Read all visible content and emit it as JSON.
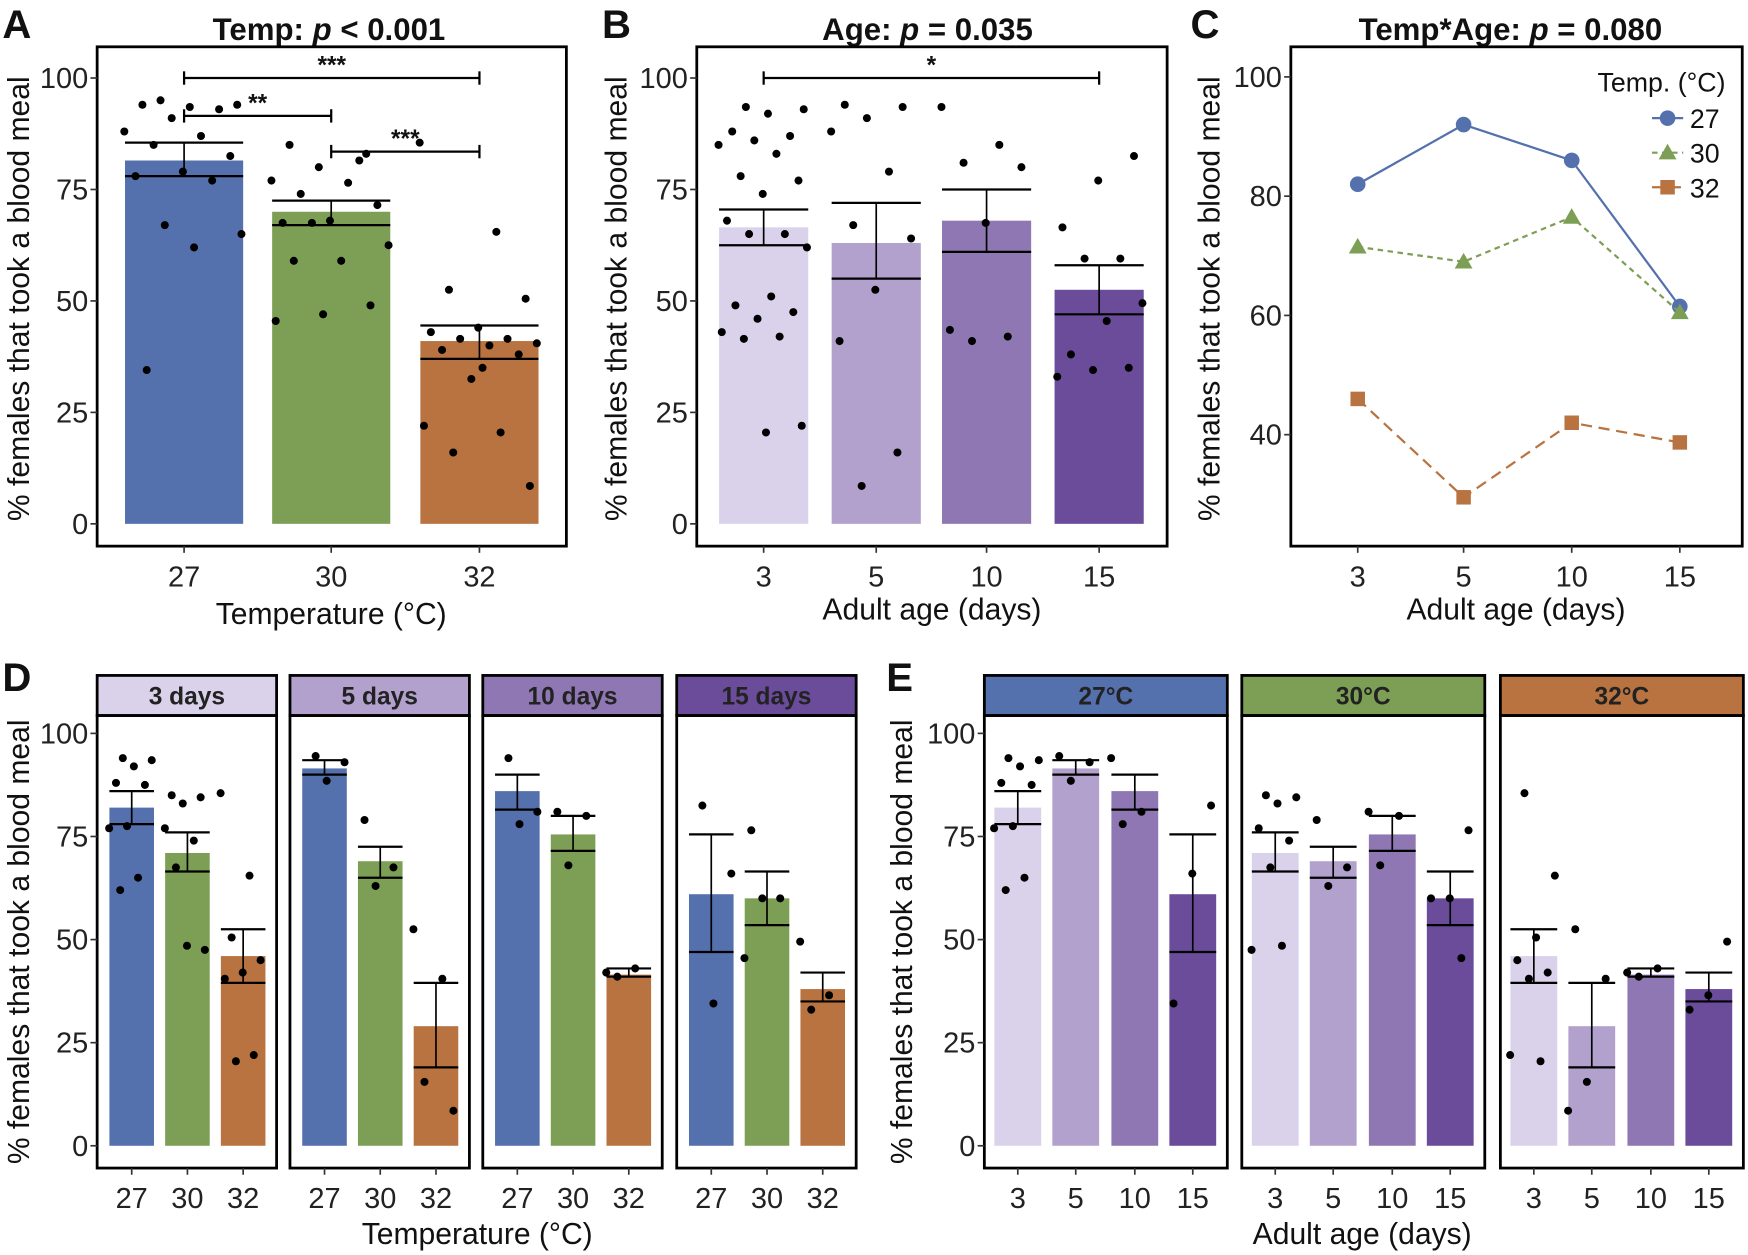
{
  "colors": {
    "temp": {
      "27": "#5470ad",
      "30": "#7d9f55",
      "32": "#b87340"
    },
    "age": {
      "3": "#d9d2ea",
      "5": "#b3a1cd",
      "10": "#8e77b3",
      "15": "#6b4c9b"
    },
    "points": "#000000",
    "frame": "#000000"
  },
  "chart_data": [
    {
      "panel": "A",
      "type": "bar",
      "title": {
        "prefix": "Temp: ",
        "p": "p",
        "suffix": " < 0.001"
      },
      "xlabel": "Temperature (°C)",
      "ylabel": "% females that took a blood meal",
      "ylim": [
        0,
        100
      ],
      "yticks": [
        0,
        25,
        50,
        75,
        100
      ],
      "categories": [
        "27",
        "30",
        "32"
      ],
      "color_by": "temp",
      "values": [
        81.5,
        70,
        41
      ],
      "se_low": [
        78,
        67,
        37
      ],
      "se_high": [
        85.5,
        72.5,
        44.5
      ],
      "points": [
        [
          95,
          94,
          93.5,
          94,
          93,
          91,
          88,
          87,
          85,
          82.5,
          79,
          78,
          77,
          67,
          65,
          62,
          34.5
        ],
        [
          85,
          83,
          80,
          77,
          76.5,
          74,
          71.5,
          68,
          67.5,
          81.5,
          67.5,
          62.5,
          59,
          59,
          49,
          47,
          45.5
        ],
        [
          85.5,
          65.5,
          52.5,
          50.5,
          44,
          43,
          41.5,
          41.5,
          40.5,
          40,
          39,
          38,
          32.5,
          22,
          20.5,
          16,
          8.5,
          35
        ]
      ],
      "significance": [
        {
          "from": "27",
          "to": "32",
          "y": 100,
          "label": "***"
        },
        {
          "from": "27",
          "to": "30",
          "y": 91.5,
          "label": "**"
        },
        {
          "from": "30",
          "to": "32",
          "y": 83.5,
          "label": "***"
        }
      ]
    },
    {
      "panel": "B",
      "type": "bar",
      "title": {
        "prefix": "Age: ",
        "p": "p",
        "suffix": " = 0.035"
      },
      "xlabel": "Adult age (days)",
      "ylabel": "% females that took a blood meal",
      "ylim": [
        0,
        100
      ],
      "yticks": [
        0,
        25,
        50,
        75,
        100
      ],
      "categories": [
        "3",
        "5",
        "10",
        "15"
      ],
      "color_by": "age",
      "values": [
        66.5,
        63,
        68,
        52.5
      ],
      "se_low": [
        62.5,
        55,
        61,
        47
      ],
      "se_high": [
        70.5,
        72,
        75,
        58
      ],
      "points": [
        [
          93.5,
          93,
          92,
          88,
          87,
          86,
          85,
          83,
          78,
          77,
          74,
          68,
          65,
          65,
          62,
          51,
          49,
          47.5,
          46,
          43,
          42,
          41.5,
          22,
          20.5
        ],
        [
          94,
          93.5,
          91,
          88,
          79,
          67,
          64,
          52.5,
          41,
          16,
          8.5
        ],
        [
          93.5,
          85,
          81,
          80,
          67.5,
          43.5,
          42,
          41
        ],
        [
          82.5,
          77,
          66.5,
          59.5,
          59.5,
          49.5,
          45.5,
          38,
          35,
          34.5,
          33
        ]
      ],
      "significance": [
        {
          "from": "3",
          "to": "15",
          "y": 100,
          "label": "*"
        }
      ]
    },
    {
      "panel": "C",
      "type": "line",
      "title": {
        "prefix": "Temp*Age: ",
        "p": "p",
        "suffix": " = 0.080"
      },
      "xlabel": "Adult age (days)",
      "ylabel": "% females that took a blood meal",
      "ylim": [
        21,
        105
      ],
      "yticks": [
        40,
        60,
        80,
        100
      ],
      "x": [
        "3",
        "5",
        "10",
        "15"
      ],
      "legend": {
        "title": "Temp. (°C)",
        "position": "top-right"
      },
      "series": [
        {
          "name": "27",
          "marker": "circle",
          "dash": "solid",
          "values": [
            82,
            92,
            86,
            61.5
          ]
        },
        {
          "name": "30",
          "marker": "triangle",
          "dash": "dotted",
          "values": [
            71.5,
            69,
            76.5,
            60.5
          ]
        },
        {
          "name": "32",
          "marker": "square",
          "dash": "dashed",
          "values": [
            46,
            29.5,
            42,
            38.7
          ]
        }
      ]
    },
    {
      "panel": "D",
      "type": "bar",
      "facet_by": "age",
      "xlabel": "Temperature (°C)",
      "ylabel": "% females that took a blood meal",
      "ylim": [
        0,
        100
      ],
      "yticks": [
        0,
        25,
        50,
        75,
        100
      ],
      "facets": [
        "3 days",
        "5 days",
        "10 days",
        "15 days"
      ],
      "facet_keys": [
        "3",
        "5",
        "10",
        "15"
      ],
      "categories": [
        "27",
        "30",
        "32"
      ],
      "values": [
        [
          82,
          71,
          46
        ],
        [
          91.5,
          69,
          29
        ],
        [
          86,
          75.5,
          41.5
        ],
        [
          61,
          60,
          38
        ]
      ],
      "se_low": [
        [
          78,
          66.5,
          39.5
        ],
        [
          90,
          65,
          19
        ],
        [
          81.5,
          71.5,
          41
        ],
        [
          47,
          53.5,
          35
        ]
      ],
      "se_high": [
        [
          86,
          76,
          52.5
        ],
        [
          93.5,
          72.5,
          39.5
        ],
        [
          90,
          80,
          43
        ],
        [
          75.5,
          66.5,
          42
        ]
      ],
      "points": [
        [
          [
            94,
            93.5,
            92,
            88,
            87.5,
            77.5,
            77,
            65,
            62
          ],
          [
            85,
            84.5,
            83,
            77,
            74,
            67.5,
            47.5,
            48.5
          ],
          [
            85.5,
            65.5,
            50.5,
            45,
            42,
            40.5,
            22,
            20.5
          ]
        ],
        [
          [
            94.5,
            93,
            88.5
          ],
          [
            79,
            67.5,
            63
          ],
          [
            52.5,
            40.5,
            15.5,
            8.5
          ]
        ],
        [
          [
            94,
            81,
            78
          ],
          [
            81,
            80,
            68
          ],
          [
            42,
            43,
            41
          ]
        ],
        [
          [
            82.5,
            66,
            34.5
          ],
          [
            76.5,
            60,
            60,
            45.5
          ],
          [
            49.5,
            36.5,
            33
          ]
        ]
      ]
    },
    {
      "panel": "E",
      "type": "bar",
      "facet_by": "temp",
      "xlabel": "Adult age (days)",
      "ylabel": "% females that took a blood meal",
      "ylim": [
        0,
        100
      ],
      "yticks": [
        0,
        25,
        50,
        75,
        100
      ],
      "facets": [
        "27°C",
        "30°C",
        "32°C"
      ],
      "facet_keys": [
        "27",
        "30",
        "32"
      ],
      "categories": [
        "3",
        "5",
        "10",
        "15"
      ],
      "values": [
        [
          82,
          91.5,
          86,
          61
        ],
        [
          71,
          69,
          75.5,
          60
        ],
        [
          46,
          29,
          41.5,
          38
        ]
      ],
      "se_low": [
        [
          78,
          90,
          81.5,
          47
        ],
        [
          66.5,
          65,
          71.5,
          53.5
        ],
        [
          39.5,
          19,
          41,
          35
        ]
      ],
      "se_high": [
        [
          86,
          93.5,
          90,
          75.5
        ],
        [
          76,
          72.5,
          80,
          66.5
        ],
        [
          52.5,
          39.5,
          43,
          42
        ]
      ]
    }
  ]
}
